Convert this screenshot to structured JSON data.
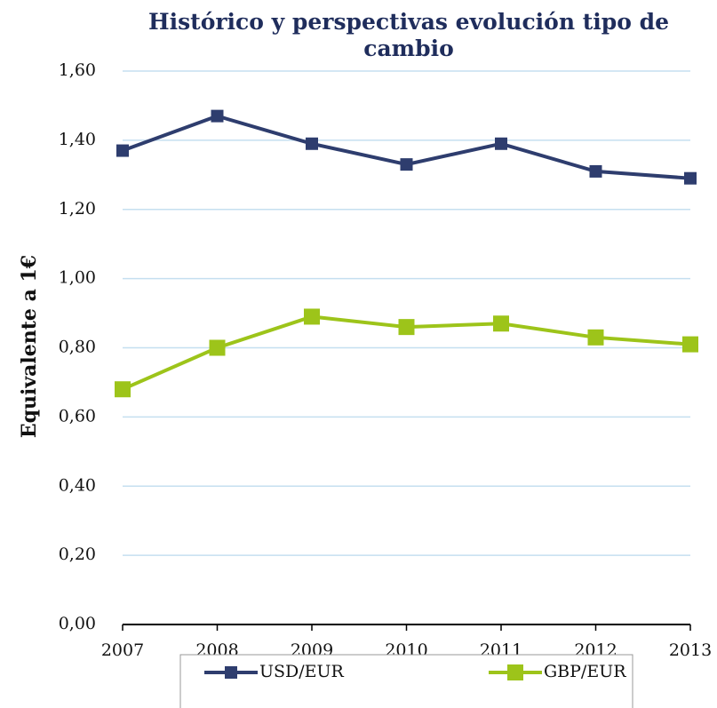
{
  "chart_data": {
    "type": "line",
    "title": "Histórico y perspectivas evolución tipo de cambio",
    "y_label": "Equivalente a 1€",
    "categories": [
      "2007",
      "2008",
      "2009",
      "2010",
      "2011",
      "2012",
      "2013"
    ],
    "series": [
      {
        "name": "USD/EUR",
        "color": "#2e3d6e",
        "values": [
          1.37,
          1.47,
          1.39,
          1.33,
          1.39,
          1.31,
          1.29
        ]
      },
      {
        "name": "GBP/EUR",
        "color": "#9dc41a",
        "values": [
          0.68,
          0.8,
          0.89,
          0.86,
          0.87,
          0.83,
          0.81
        ]
      }
    ],
    "ylim": [
      0,
      1.6
    ],
    "yticks": [
      {
        "value": 0,
        "label": "0,00"
      },
      {
        "value": 0.2,
        "label": "0,20"
      },
      {
        "value": 0.4,
        "label": "0,40"
      },
      {
        "value": 0.6,
        "label": "0,60"
      },
      {
        "value": 0.8,
        "label": "0,80"
      },
      {
        "value": 1.0,
        "label": "1,00"
      },
      {
        "value": 1.2,
        "label": "1,20"
      },
      {
        "value": 1.4,
        "label": "1,40"
      },
      {
        "value": 1.6,
        "label": "1,60"
      }
    ],
    "grid": true,
    "legend": "bottom"
  }
}
